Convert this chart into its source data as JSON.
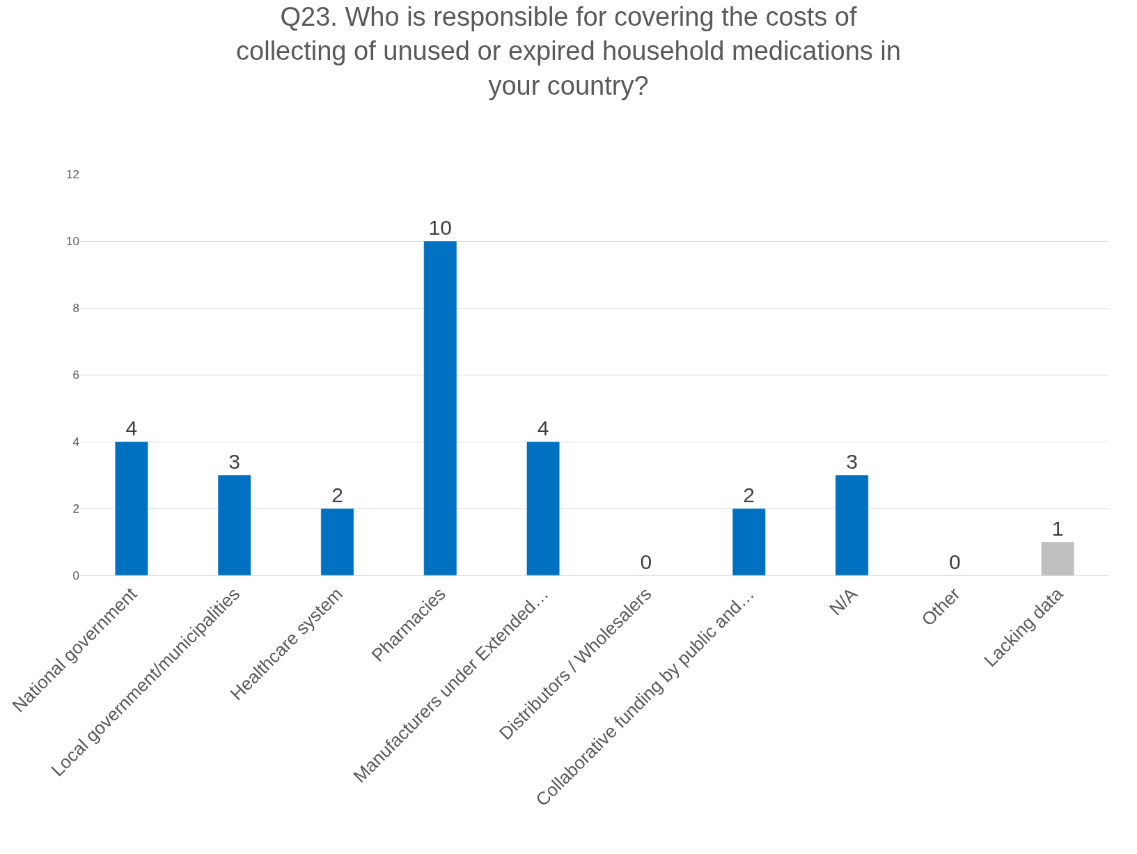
{
  "chart_data": {
    "type": "bar",
    "title": "Q23. Who is responsible for covering the costs of collecting of unused or expired household medications in your country?",
    "categories": [
      "National government",
      "Local government/municipalities",
      "Healthcare system",
      "Pharmacies",
      "Manufacturers under Extended…",
      "Distributors / Wholesalers",
      "Collaborative funding by public and…",
      "N/A",
      "Other",
      "Lacking data"
    ],
    "values": [
      4,
      3,
      2,
      10,
      4,
      0,
      2,
      3,
      0,
      1
    ],
    "colors": [
      "#0070c0",
      "#0070c0",
      "#0070c0",
      "#0070c0",
      "#0070c0",
      null,
      "#0070c0",
      "#0070c0",
      null,
      "#bfbfbf"
    ],
    "ylim": [
      0,
      12
    ],
    "yticks": [
      0,
      2,
      4,
      6,
      8,
      10,
      12
    ],
    "grid": "y",
    "data_labels": true
  }
}
